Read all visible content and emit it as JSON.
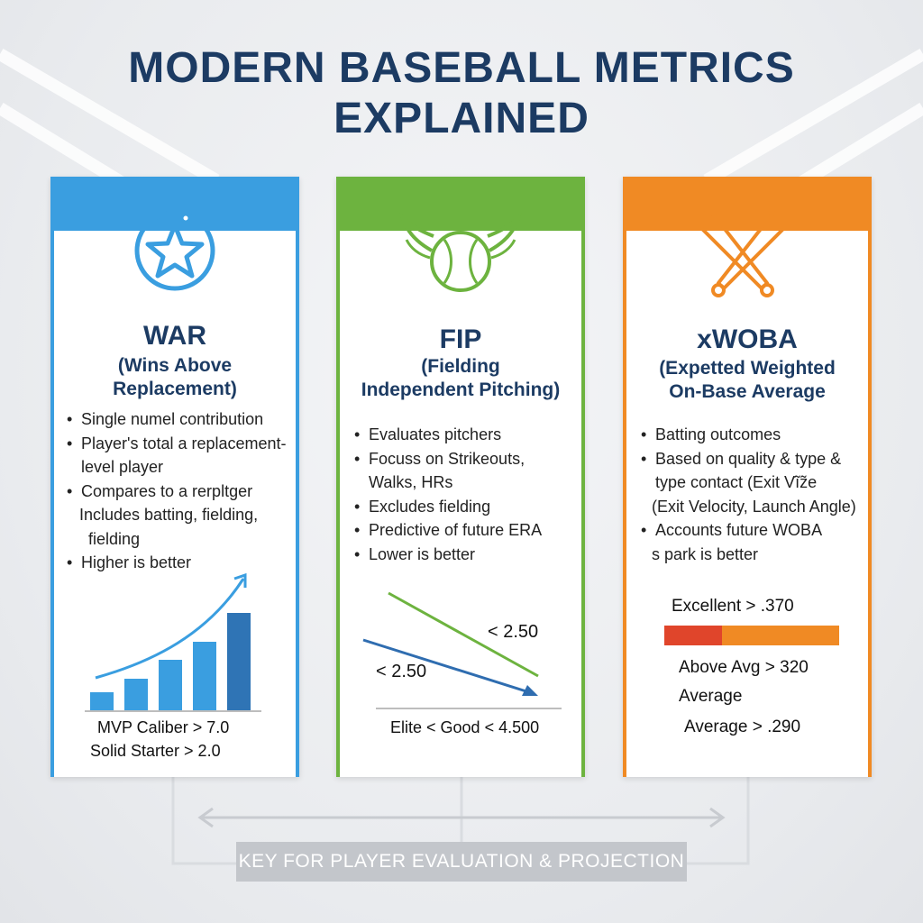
{
  "title": {
    "line1": "MODERN BASEBALL METRICS",
    "line2": "EXPLAINED"
  },
  "colors": {
    "war": "#3a9ee0",
    "fip": "#6db33f",
    "xwoba": "#f08a24",
    "title": "#1c3b63",
    "bar_dark": "#2f74b5",
    "fip_blue": "#2f6db0",
    "rating_red": "#e0452b"
  },
  "cards": {
    "war": {
      "icon": "star-badge-icon",
      "name": "WAR",
      "full1": "(Wins Above",
      "full2": "Replacement)",
      "bullets": [
        "Single numel contribution",
        "Player's total a replacement-",
        "level player",
        "Compares to a rerpltger",
        "Includes batting, fielding,",
        "fielding",
        "Higher is better"
      ],
      "foot1": "MVP Caliber > 7.0",
      "foot2": "Solid Starter > 2.0"
    },
    "fip": {
      "icon": "winged-baseball-icon",
      "name": "FIP",
      "full1": "(Fielding",
      "full2": "Independent Pitching)",
      "bullets": [
        "Evaluates pitchers",
        "Focuss on Strikeouts,",
        "Walks, HRs",
        "Excludes fielding",
        "Predictive of future ERA",
        "Lower is better"
      ],
      "label_green": "< 2.50",
      "label_blue": "< 2.50",
      "foot": "Elite < Good < 4.500"
    },
    "xwoba": {
      "icon": "crossed-bats-icon",
      "name": "xWOBA",
      "full1": "(Expetted Weighted",
      "full2": "On-Base Average",
      "bullets": [
        "Batting outcomes",
        "Based on quality & type &",
        "type contact (Exit Vĩz̃e",
        "(Exit Velocity, Launch Angle)",
        "Accounts future WOBA",
        "s park is better"
      ],
      "excellent": "Excellent > .370",
      "above_avg": "Above Avg > 320",
      "average1": "Average",
      "average2": "Average > .290"
    }
  },
  "footer": {
    "key_label": "KEY FOR PLAYER EVALUATION & PROJECTION"
  }
}
